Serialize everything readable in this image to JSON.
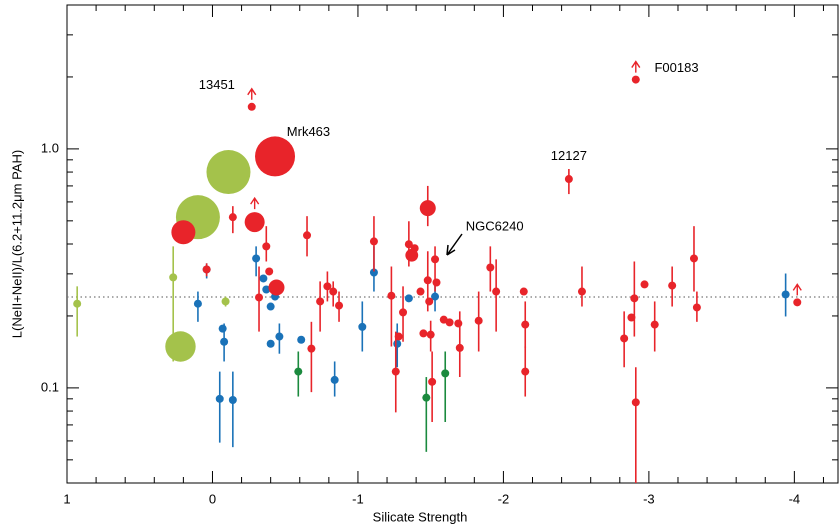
{
  "chart_data": {
    "type": "scatter",
    "x_label": "Silicate Strength",
    "y_label": "L(NeII+NeII)/L(6.2+11.2μm PAH)",
    "xlim": [
      1,
      -4.3
    ],
    "xticks": [
      1,
      0,
      -1,
      -2,
      -3,
      -4
    ],
    "xminor_ticks": [
      0.8,
      0.6,
      0.4,
      0.2,
      -0.2,
      -0.4,
      -0.6,
      -0.8,
      -1.2,
      -1.4,
      -1.6,
      -1.8,
      -2.2,
      -2.4,
      -2.6,
      -2.8,
      -3.2,
      -3.4,
      -3.6,
      -3.8,
      -4.2
    ],
    "ylim": [
      0.04,
      4
    ],
    "log_y": true,
    "yticks": [
      0.1,
      {
        "value": 1,
        "label": "1.0"
      }
    ],
    "yminor_ticks": [
      0.05,
      0.06,
      0.07,
      0.08,
      0.09,
      0.2,
      0.3,
      0.4,
      0.5,
      0.6,
      0.7,
      0.8,
      0.9,
      2,
      3,
      4
    ],
    "hline": 0.24,
    "series": [
      {
        "color": "#a4c24b",
        "x": [
          0.93,
          0.27,
          0.22,
          0.1,
          -0.11,
          -0.09
        ],
        "values": [
          0.225,
          0.29,
          0.149,
          0.518,
          0.8,
          0.23
        ],
        "ylow": [
          0.164,
          0.129,
          null,
          null,
          null,
          0.219
        ],
        "yhigh": [
          0.266,
          0.391,
          null,
          null,
          null,
          0.241
        ],
        "sizes": [
          1,
          1,
          3.8,
          5.5,
          5.5,
          1
        ]
      },
      {
        "color": "#1b8a3e",
        "x": [
          -0.59,
          -1.47,
          -1.6
        ],
        "values": [
          0.117,
          0.091,
          0.115
        ],
        "ylow": [
          0.092,
          0.054,
          0.072
        ],
        "yhigh": [
          0.142,
          0.111,
          0.142
        ]
      },
      {
        "color": "#1a72b8",
        "x": [
          0.1,
          0.04,
          -0.05,
          -0.07,
          -0.08,
          -0.14,
          -0.3,
          -0.35,
          -0.37,
          -0.4,
          -0.4,
          -0.43,
          -0.46,
          -0.61,
          -0.84,
          -1.03,
          -1.11,
          -1.27,
          -1.35,
          -1.53,
          -3.94
        ],
        "values": [
          0.225,
          0.313,
          0.09,
          0.177,
          0.156,
          0.089,
          0.348,
          0.287,
          0.258,
          0.219,
          0.153,
          0.241,
          0.164,
          0.159,
          0.108,
          0.18,
          0.304,
          0.153,
          0.237,
          0.241,
          0.246
        ],
        "ylow": [
          0.189,
          0.287,
          0.059,
          null,
          0.129,
          0.0565,
          0.293,
          null,
          null,
          null,
          null,
          null,
          0.139,
          null,
          0.092,
          0.142,
          0.253,
          0.122,
          null,
          0.209,
          0.199
        ],
        "yhigh": [
          0.253,
          0.332,
          0.117,
          null,
          0.186,
          0.117,
          0.391,
          null,
          null,
          null,
          null,
          null,
          0.186,
          null,
          0.129,
          0.23,
          0.391,
          0.186,
          null,
          0.279,
          0.301
        ]
      },
      {
        "color": "#e8242a",
        "x": [
          -0.27,
          -0.14,
          0.04,
          -0.29,
          0.2,
          -0.43,
          -0.44,
          -0.32,
          -0.37,
          -0.39,
          -0.65,
          -0.68,
          -0.74,
          -0.79,
          -0.83,
          -0.87,
          -1.11,
          -1.23,
          -1.26,
          -1.28,
          -1.31,
          -1.35,
          -1.37,
          -1.39,
          -1.43,
          -1.45,
          -1.48,
          -1.49,
          -1.48,
          -1.5,
          -1.51,
          -1.53,
          -1.54,
          -1.59,
          -1.63,
          -1.69,
          -1.7,
          -1.83,
          -1.91,
          -1.95,
          -2.14,
          -2.15,
          -2.15,
          -2.45,
          -2.54,
          -2.83,
          -2.88,
          -2.9,
          -2.91,
          -2.97,
          -3.04,
          -2.91,
          -3.16,
          -3.31,
          -3.33,
          -4.02
        ],
        "values": [
          1.5,
          0.518,
          0.313,
          0.494,
          0.448,
          0.93,
          0.263,
          0.239,
          0.391,
          0.307,
          0.435,
          0.146,
          0.23,
          0.266,
          0.253,
          0.221,
          0.41,
          0.243,
          0.117,
          0.164,
          0.207,
          0.399,
          0.359,
          0.384,
          0.253,
          0.169,
          0.565,
          0.23,
          0.282,
          0.167,
          0.106,
          0.345,
          0.276,
          0.193,
          0.188,
          0.186,
          0.147,
          0.191,
          0.319,
          0.253,
          0.253,
          0.184,
          0.117,
          0.748,
          0.253,
          0.161,
          0.197,
          0.237,
          0.087,
          0.271,
          0.184,
          1.95,
          0.268,
          0.348,
          0.217,
          0.228
        ],
        "ylow": [
          null,
          0.444,
          0.293,
          null,
          null,
          null,
          null,
          0.172,
          0.338,
          null,
          0.355,
          0.096,
          0.172,
          0.23,
          0.219,
          0.189,
          0.307,
          0.149,
          0.079,
          null,
          0.156,
          0.322,
          null,
          null,
          null,
          null,
          0.475,
          null,
          0.209,
          0.142,
          0.072,
          0.253,
          null,
          null,
          null,
          null,
          0.111,
          0.142,
          0.253,
          0.172,
          null,
          0.147,
          0.092,
          0.647,
          0.219,
          0.122,
          null,
          0.164,
          0.04,
          null,
          0.142,
          null,
          0.219,
          0.253,
          0.189,
          null
        ],
        "yhigh": [
          null,
          0.576,
          0.332,
          null,
          null,
          null,
          null,
          0.322,
          0.475,
          null,
          0.523,
          0.189,
          0.279,
          0.307,
          0.279,
          0.253,
          0.523,
          0.322,
          0.172,
          null,
          0.266,
          0.498,
          null,
          null,
          null,
          null,
          0.7,
          null,
          0.373,
          0.191,
          0.142,
          0.391,
          null,
          null,
          null,
          null,
          0.209,
          0.253,
          0.391,
          0.345,
          null,
          0.23,
          0.149,
          0.824,
          0.322,
          0.209,
          null,
          0.338,
          0.122,
          null,
          0.23,
          null,
          0.322,
          0.475,
          0.253,
          null
        ],
        "sizes": [
          1,
          1,
          1,
          2.5,
          3,
          5,
          2,
          1,
          1,
          1,
          1,
          1,
          1,
          1,
          1,
          1,
          1,
          1,
          1,
          1,
          1,
          1,
          1.6,
          1,
          1,
          1,
          2,
          1,
          1,
          1,
          1,
          1,
          1,
          1,
          1,
          1,
          1,
          1,
          1,
          1,
          1,
          1,
          1,
          1,
          1,
          1,
          1,
          1,
          1,
          1,
          1,
          1,
          1,
          1,
          1,
          1
        ],
        "lower_limit": [
          true,
          false,
          false,
          true,
          false,
          false,
          false,
          false,
          false,
          false,
          false,
          false,
          false,
          false,
          false,
          false,
          false,
          false,
          false,
          false,
          false,
          false,
          false,
          false,
          false,
          false,
          false,
          false,
          false,
          false,
          false,
          false,
          false,
          false,
          false,
          false,
          false,
          false,
          false,
          false,
          false,
          false,
          false,
          false,
          false,
          false,
          false,
          false,
          false,
          false,
          false,
          true,
          false,
          false,
          false,
          true
        ]
      }
    ],
    "annotations": [
      {
        "text": "13451",
        "x": -0.03,
        "y": 1.84
      },
      {
        "text": "Mrk463",
        "x": -0.66,
        "y": 1.17
      },
      {
        "text": "12127",
        "x": -2.45,
        "y": 0.93
      },
      {
        "text": "F00183",
        "x": -3.19,
        "y": 2.17
      },
      {
        "text": "NGC6240",
        "x": -1.94,
        "y": 0.47
      }
    ]
  }
}
